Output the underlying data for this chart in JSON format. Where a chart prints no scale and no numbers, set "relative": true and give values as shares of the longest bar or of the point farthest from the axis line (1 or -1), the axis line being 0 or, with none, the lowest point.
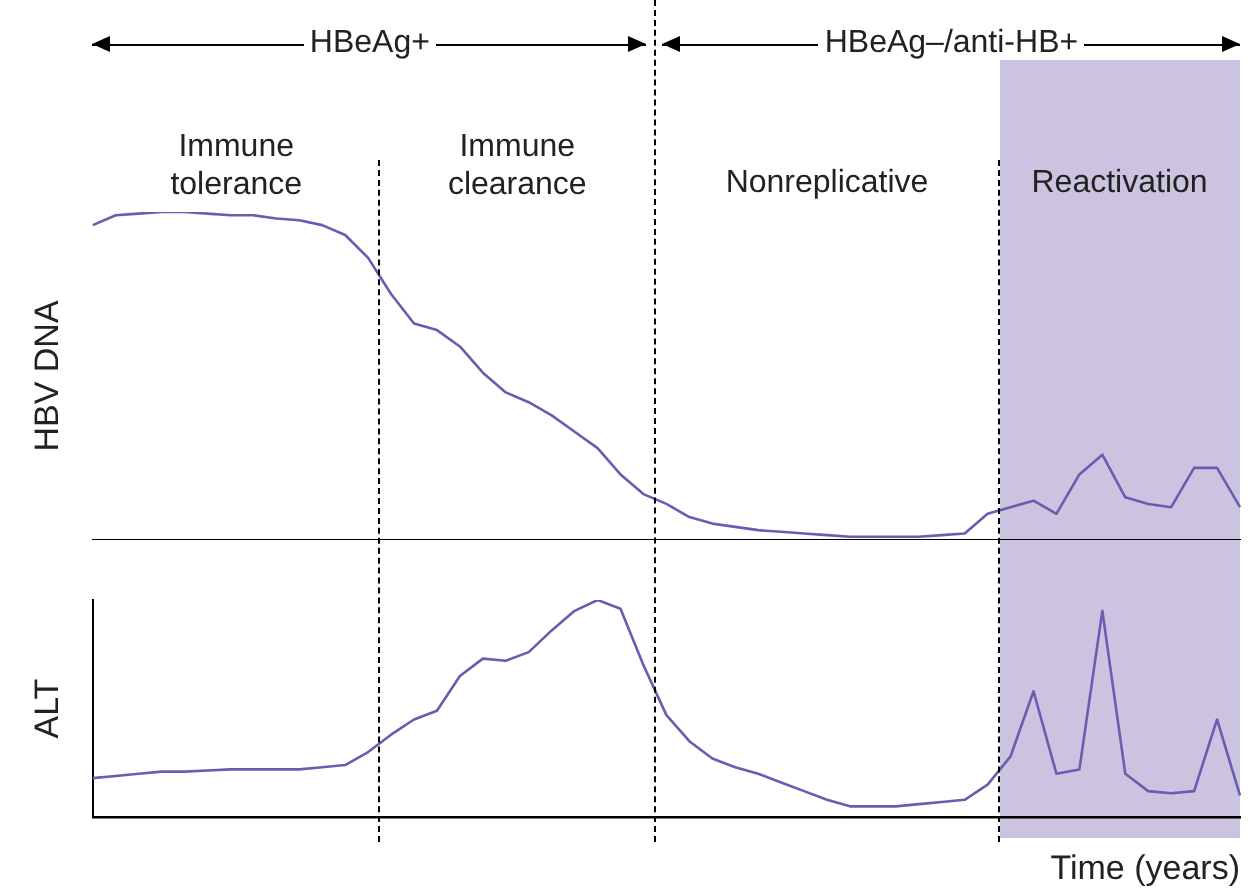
{
  "chart_data": [
    {
      "type": "line",
      "relative": true,
      "ylabel": "HBV DNA",
      "grid": false,
      "marker": "none",
      "annotations": [
        "HBeAg+",
        "HBeAg–/anti-HB+",
        "Immune tolerance",
        "Immune clearance",
        "Nonreplicative",
        "Reactivation"
      ],
      "categories": [
        null,
        null,
        null,
        null,
        null,
        null,
        null,
        null,
        null,
        null,
        null,
        null,
        null,
        null,
        null,
        null,
        null,
        null,
        null,
        null,
        null,
        null,
        null,
        null,
        null,
        null,
        null,
        null,
        null,
        null,
        null,
        null,
        null,
        null,
        null,
        null,
        null,
        null,
        null,
        null,
        null,
        null,
        null,
        null,
        null,
        null,
        null,
        null,
        null,
        null,
        null
      ],
      "series": [
        {
          "color": "#6a5cb0",
          "values": [
            0.96,
            0.99,
            0.995,
            1,
            1,
            0.995,
            0.99,
            0.99,
            0.98,
            0.975,
            0.96,
            0.93,
            0.86,
            0.75,
            0.66,
            0.64,
            0.59,
            0.51,
            0.45,
            0.42,
            0.38,
            0.33,
            0.28,
            0.2,
            0.14,
            0.11,
            0.07,
            0.05,
            0.04,
            0.03,
            0.025,
            0.02,
            0.015,
            0.01,
            0.01,
            0.01,
            0.01,
            0.015,
            0.02,
            0.08,
            0.1,
            0.12,
            0.08,
            0.2,
            0.26,
            0.13,
            0.11,
            0.1,
            0.22,
            0.22,
            0.1
          ]
        }
      ]
    },
    {
      "type": "line",
      "relative": true,
      "ylabel": "ALT",
      "xlabel": "Time (years)",
      "grid": false,
      "marker": "none",
      "categories": [
        null,
        null,
        null,
        null,
        null,
        null,
        null,
        null,
        null,
        null,
        null,
        null,
        null,
        null,
        null,
        null,
        null,
        null,
        null,
        null,
        null,
        null,
        null,
        null,
        null,
        null,
        null,
        null,
        null,
        null,
        null,
        null,
        null,
        null,
        null,
        null,
        null,
        null,
        null,
        null,
        null,
        null,
        null,
        null,
        null,
        null,
        null,
        null,
        null,
        null,
        null
      ],
      "series": [
        {
          "color": "#6a5cb0",
          "values": [
            0.18,
            0.19,
            0.2,
            0.21,
            0.21,
            0.215,
            0.22,
            0.22,
            0.22,
            0.22,
            0.23,
            0.24,
            0.3,
            0.38,
            0.45,
            0.49,
            0.65,
            0.73,
            0.72,
            0.76,
            0.86,
            0.95,
            1,
            0.96,
            0.7,
            0.47,
            0.35,
            0.27,
            0.23,
            0.2,
            0.16,
            0.12,
            0.08,
            0.05,
            0.05,
            0.05,
            0.06,
            0.07,
            0.08,
            0.15,
            0.28,
            0.58,
            0.2,
            0.22,
            0.95,
            0.2,
            0.12,
            0.11,
            0.12,
            0.45,
            0.1
          ]
        }
      ]
    }
  ]
}
